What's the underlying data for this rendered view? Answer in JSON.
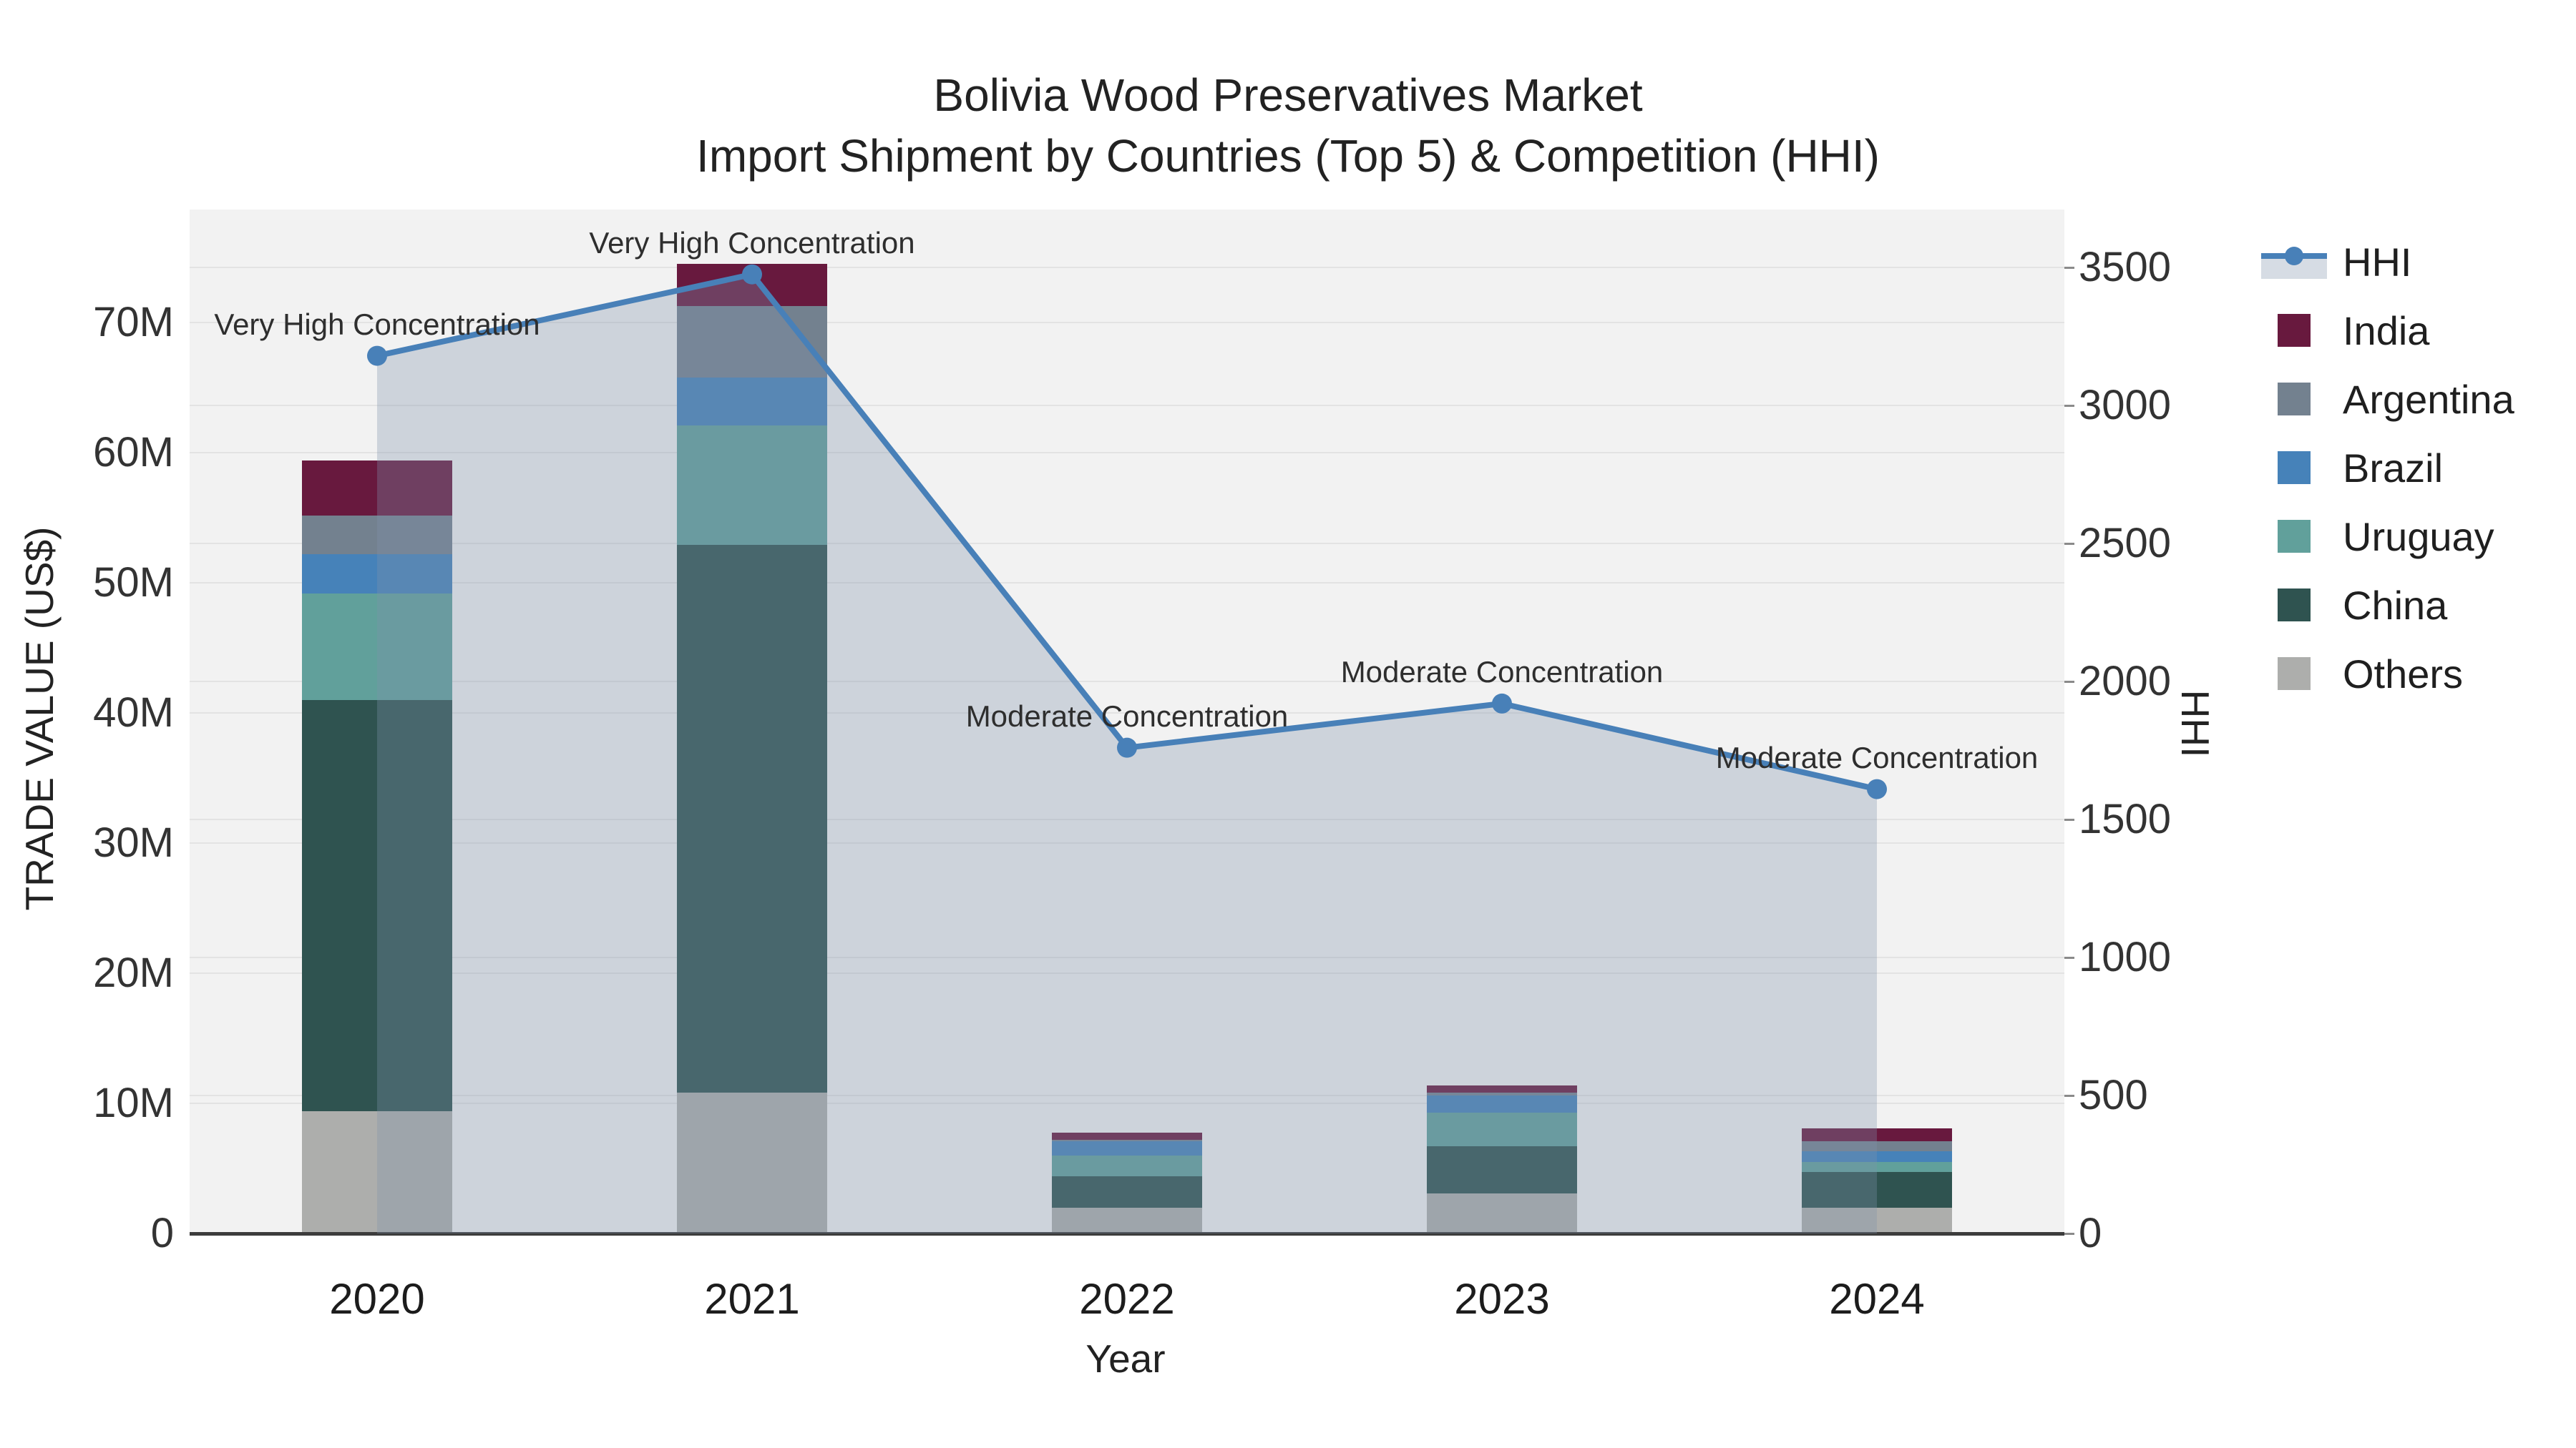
{
  "chart_data": {
    "type": "stacked-bar+line",
    "title_line1": "Bolivia Wood Preservatives Market",
    "title_line2": "Import Shipment by Countries (Top 5) & Competition (HHI)",
    "xlabel": "Year",
    "ylabel_left": "TRADE VALUE (US$)",
    "ylabel_right": "HHI",
    "categories": [
      "2020",
      "2021",
      "2022",
      "2023",
      "2024"
    ],
    "bar_series": [
      {
        "name": "India",
        "color": "#68193e",
        "values": [
          4.2,
          3.2,
          0.55,
          0.6,
          1.0
        ]
      },
      {
        "name": "Argentina",
        "color": "#73818f",
        "values": [
          3.0,
          5.5,
          0.1,
          0.2,
          0.8
        ]
      },
      {
        "name": "Brazil",
        "color": "#4682b9",
        "values": [
          3.0,
          3.7,
          1.1,
          1.3,
          0.8
        ]
      },
      {
        "name": "Uruguay",
        "color": "#61a09b",
        "values": [
          8.2,
          9.2,
          1.6,
          2.6,
          0.8
        ]
      },
      {
        "name": "China",
        "color": "#2f5350",
        "values": [
          31.6,
          42.1,
          2.4,
          3.6,
          2.7
        ]
      },
      {
        "name": "Others",
        "color": "#adaeac",
        "values": [
          9.4,
          10.8,
          2.0,
          3.1,
          2.0
        ]
      }
    ],
    "line_series": {
      "name": "HHI",
      "color": "#4880b8",
      "fill_color": "rgba(128,145,170,0.32)",
      "values": [
        3180,
        3475,
        1760,
        1920,
        1610
      ]
    },
    "annotations": [
      {
        "category": "2020",
        "text": "Very High Concentration"
      },
      {
        "category": "2021",
        "text": "Very High Concentration"
      },
      {
        "category": "2022",
        "text": "Moderate Concentration"
      },
      {
        "category": "2023",
        "text": "Moderate Concentration"
      },
      {
        "category": "2024",
        "text": "Moderate Concentration"
      }
    ],
    "y_left_axis": {
      "tick_labels": [
        "0",
        "10M",
        "20M",
        "30M",
        "40M",
        "50M",
        "60M",
        "70M"
      ],
      "tick_values": [
        0,
        10,
        20,
        30,
        40,
        50,
        60,
        70
      ],
      "range": [
        0,
        78.7
      ]
    },
    "y_right_axis": {
      "tick_labels": [
        "0",
        "500",
        "1000",
        "1500",
        "2000",
        "2500",
        "3000",
        "3500"
      ],
      "tick_values": [
        0,
        500,
        1000,
        1500,
        2000,
        2500,
        3000,
        3500
      ],
      "range": [
        0,
        3710
      ]
    },
    "legend_position": "right",
    "grid": true
  }
}
